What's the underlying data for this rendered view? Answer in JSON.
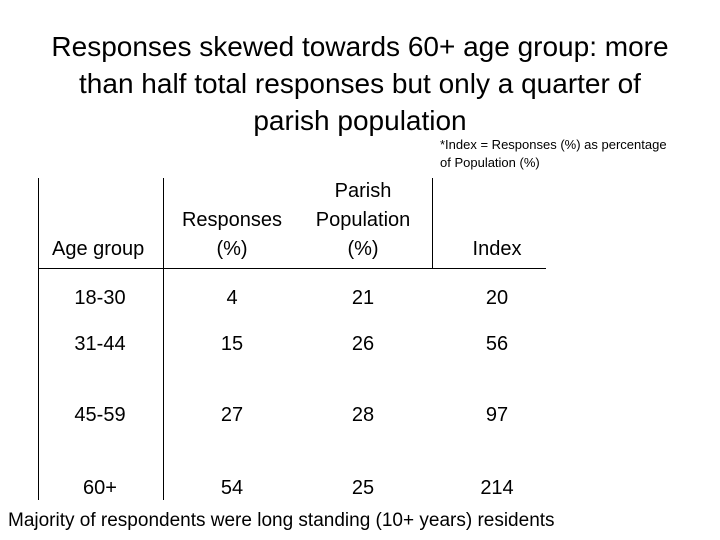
{
  "title": [
    "Responses skewed towards 60+ age group: more",
    "than half total responses but only a quarter  of",
    "parish population"
  ],
  "note": "*Index = Responses (%) as percentage of Population (%)",
  "table": {
    "header": [
      "Age group",
      "Responses (%)",
      "Parish Population (%)",
      "Index"
    ],
    "rows": [
      [
        "18-30",
        4,
        21,
        20
      ],
      [
        "31-44",
        15,
        26,
        56
      ],
      [
        "45-59",
        27,
        28,
        97
      ],
      [
        "60+",
        54,
        25,
        214
      ]
    ]
  },
  "footer": "Majority of respondents were long standing (10+ years) residents"
}
